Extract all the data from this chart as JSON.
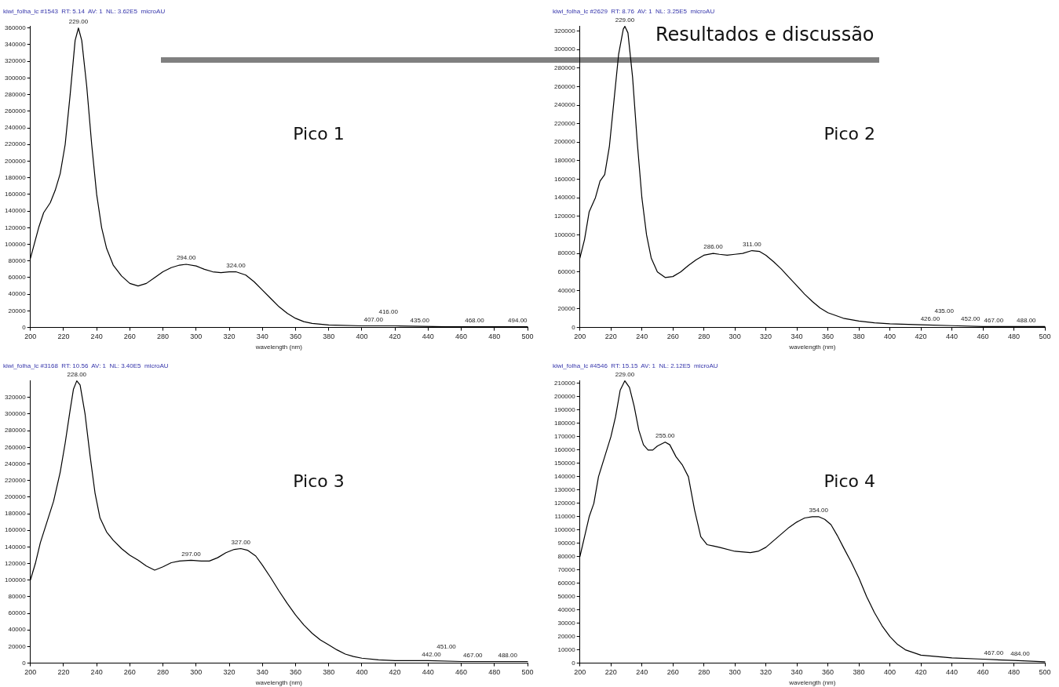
{
  "chart_data": [
    {
      "type": "line",
      "title": "kiwi_folha_lc #1543  RT: 5.14  AV: 1  NL: 3.62E5  microAU",
      "xlabel": "wavelength (nm)",
      "grid": false,
      "legend": false,
      "marker": "none",
      "xlim": [
        200,
        500
      ],
      "xticks": [
        200,
        220,
        240,
        260,
        280,
        300,
        320,
        340,
        360,
        380,
        400,
        420,
        440,
        460,
        480,
        500
      ],
      "ylim": [
        0,
        362000
      ],
      "yticks": [
        0,
        20000,
        40000,
        60000,
        80000,
        100000,
        120000,
        140000,
        160000,
        180000,
        200000,
        220000,
        240000,
        260000,
        280000,
        300000,
        320000,
        340000,
        360000
      ],
      "series": [
        {
          "color": "#000000",
          "x": [
            200,
            205,
            208,
            212,
            215,
            218,
            221,
            224,
            227,
            229,
            231,
            234,
            237,
            240,
            243,
            246,
            250,
            255,
            260,
            265,
            270,
            275,
            280,
            285,
            290,
            294,
            300,
            305,
            310,
            315,
            320,
            324,
            330,
            335,
            340,
            345,
            350,
            355,
            360,
            365,
            370,
            380,
            400,
            420,
            450,
            500
          ],
          "values": [
            83000,
            120000,
            138000,
            150000,
            165000,
            185000,
            220000,
            280000,
            345000,
            360000,
            345000,
            290000,
            220000,
            160000,
            120000,
            95000,
            75000,
            62000,
            53000,
            50000,
            53000,
            60000,
            67000,
            72000,
            75000,
            76000,
            74000,
            70000,
            67000,
            66000,
            67000,
            67000,
            63000,
            55000,
            45000,
            35000,
            25000,
            17000,
            11000,
            7000,
            5000,
            3000,
            2000,
            2000,
            1000,
            1000
          ]
        }
      ],
      "annotations": [
        "Pico 1",
        {
          "text": "229.00",
          "x": 229,
          "y": 360000
        },
        {
          "text": "294.00",
          "x": 294,
          "y": 76000
        },
        {
          "text": "324.00",
          "x": 324,
          "y": 67000
        },
        {
          "text": "407.00",
          "x": 407,
          "y": 2000
        },
        {
          "text": "416.00",
          "x": 416,
          "y": 2000
        },
        {
          "text": "435.00",
          "x": 435,
          "y": 1000
        },
        {
          "text": "468.00",
          "x": 468,
          "y": 1000
        },
        {
          "text": "494.00",
          "x": 494,
          "y": 1000
        }
      ]
    },
    {
      "type": "line",
      "title": "kiwi_folha_lc #2629  RT: 8.76  AV: 1  NL: 3.25E5  microAU",
      "xlabel": "wavelength (nm)",
      "grid": false,
      "legend": false,
      "marker": "none",
      "xlim": [
        200,
        500
      ],
      "xticks": [
        200,
        220,
        240,
        260,
        280,
        300,
        320,
        340,
        360,
        380,
        400,
        420,
        440,
        460,
        480,
        500
      ],
      "ylim": [
        0,
        325000
      ],
      "yticks": [
        0,
        20000,
        40000,
        60000,
        80000,
        100000,
        120000,
        140000,
        160000,
        180000,
        200000,
        220000,
        240000,
        260000,
        280000,
        300000,
        320000
      ],
      "series": [
        {
          "color": "#000000",
          "x": [
            200,
            203,
            206,
            210,
            213,
            216,
            219,
            222,
            225,
            228,
            229,
            231,
            234,
            237,
            240,
            243,
            246,
            250,
            255,
            260,
            265,
            270,
            275,
            280,
            286,
            290,
            295,
            300,
            305,
            311,
            316,
            320,
            325,
            330,
            335,
            340,
            345,
            350,
            355,
            360,
            370,
            380,
            390,
            400,
            420,
            440,
            460,
            480,
            500
          ],
          "values": [
            75000,
            95000,
            125000,
            140000,
            158000,
            165000,
            195000,
            245000,
            295000,
            322000,
            325000,
            318000,
            270000,
            200000,
            140000,
            100000,
            75000,
            60000,
            54000,
            55000,
            60000,
            67000,
            73000,
            78000,
            80000,
            79000,
            78000,
            79000,
            80000,
            83000,
            82000,
            78000,
            71000,
            63000,
            54000,
            45000,
            36000,
            28000,
            21000,
            16000,
            10000,
            7000,
            5000,
            4000,
            3000,
            2000,
            1000,
            1000,
            1000
          ]
        }
      ],
      "annotations": [
        "Pico 2",
        {
          "text": "229.00",
          "x": 229,
          "y": 325000
        },
        {
          "text": "286.00",
          "x": 286,
          "y": 80000
        },
        {
          "text": "311.00",
          "x": 311,
          "y": 83000
        },
        {
          "text": "426.00",
          "x": 426,
          "y": 2000
        },
        {
          "text": "435.00",
          "x": 435,
          "y": 2000
        },
        {
          "text": "452.00",
          "x": 452,
          "y": 2000
        },
        {
          "text": "467.00",
          "x": 467,
          "y": 1000
        },
        {
          "text": "488.00",
          "x": 488,
          "y": 1000
        }
      ]
    },
    {
      "type": "line",
      "title": "kiwi_folha_lc #3168  RT: 10.56  AV: 1  NL: 3.40E5  microAU",
      "xlabel": "wavelength (nm)",
      "grid": false,
      "legend": false,
      "marker": "none",
      "xlim": [
        200,
        500
      ],
      "xticks": [
        200,
        220,
        240,
        260,
        280,
        300,
        320,
        340,
        360,
        380,
        400,
        420,
        440,
        460,
        480,
        500
      ],
      "ylim": [
        0,
        340000
      ],
      "yticks": [
        0,
        20000,
        40000,
        60000,
        80000,
        100000,
        120000,
        140000,
        160000,
        180000,
        200000,
        220000,
        240000,
        260000,
        280000,
        300000,
        320000
      ],
      "series": [
        {
          "color": "#000000",
          "x": [
            200,
            203,
            206,
            210,
            214,
            218,
            221,
            224,
            226,
            228,
            230,
            233,
            236,
            239,
            242,
            246,
            250,
            255,
            260,
            265,
            270,
            275,
            280,
            285,
            290,
            297,
            303,
            308,
            313,
            318,
            323,
            327,
            331,
            336,
            340,
            345,
            350,
            355,
            360,
            365,
            370,
            375,
            380,
            385,
            390,
            395,
            400,
            410,
            420,
            440,
            460,
            480,
            500
          ],
          "values": [
            100000,
            120000,
            145000,
            170000,
            195000,
            230000,
            265000,
            305000,
            330000,
            340000,
            335000,
            300000,
            250000,
            205000,
            175000,
            158000,
            148000,
            138000,
            130000,
            124000,
            117000,
            112000,
            116000,
            121000,
            123000,
            124000,
            123000,
            123000,
            127000,
            133000,
            137000,
            138000,
            136000,
            129000,
            118000,
            103000,
            87000,
            72000,
            58000,
            46000,
            36000,
            28000,
            22000,
            16000,
            11000,
            8000,
            6000,
            4000,
            3000,
            3000,
            2000,
            2000,
            2000
          ]
        }
      ],
      "annotations": [
        "Pico 3",
        {
          "text": "228.00",
          "x": 228,
          "y": 340000
        },
        {
          "text": "297.00",
          "x": 297,
          "y": 124000
        },
        {
          "text": "327.00",
          "x": 327,
          "y": 138000
        },
        {
          "text": "442.00",
          "x": 442,
          "y": 3000
        },
        {
          "text": "451.00",
          "x": 451,
          "y": 2000
        },
        {
          "text": "467.00",
          "x": 467,
          "y": 2000
        },
        {
          "text": "488.00",
          "x": 488,
          "y": 2000
        }
      ]
    },
    {
      "type": "line",
      "title": "kiwi_folha_lc #4546  RT: 15.15  AV: 1  NL: 2.12E5  microAU",
      "xlabel": "wavelength (nm)",
      "grid": false,
      "legend": false,
      "marker": "none",
      "xlim": [
        200,
        500
      ],
      "xticks": [
        200,
        220,
        240,
        260,
        280,
        300,
        320,
        340,
        360,
        380,
        400,
        420,
        440,
        460,
        480,
        500
      ],
      "ylim": [
        0,
        212000
      ],
      "yticks": [
        0,
        10000,
        20000,
        30000,
        40000,
        50000,
        60000,
        70000,
        80000,
        90000,
        100000,
        110000,
        120000,
        130000,
        140000,
        150000,
        160000,
        170000,
        180000,
        190000,
        200000,
        210000
      ],
      "series": [
        {
          "color": "#000000",
          "x": [
            200,
            203,
            206,
            209,
            212,
            216,
            220,
            223,
            226,
            229,
            232,
            235,
            238,
            241,
            244,
            247,
            250,
            255,
            258,
            262,
            266,
            270,
            274,
            278,
            282,
            286,
            290,
            300,
            310,
            315,
            320,
            325,
            330,
            335,
            340,
            345,
            350,
            354,
            358,
            362,
            366,
            370,
            375,
            380,
            385,
            390,
            395,
            400,
            405,
            410,
            420,
            430,
            440,
            460,
            480,
            500
          ],
          "values": [
            80000,
            95000,
            110000,
            120000,
            140000,
            155000,
            170000,
            185000,
            205000,
            212000,
            207000,
            193000,
            175000,
            164000,
            160000,
            160000,
            163000,
            166000,
            164000,
            155000,
            149000,
            140000,
            115000,
            95000,
            89000,
            88000,
            87000,
            84000,
            83000,
            84000,
            87000,
            92000,
            97000,
            102000,
            106000,
            109000,
            110000,
            110000,
            108000,
            104000,
            96000,
            87000,
            76000,
            64000,
            50000,
            38000,
            28000,
            20000,
            14000,
            10000,
            6000,
            5000,
            4000,
            3000,
            2000,
            1000
          ]
        }
      ],
      "annotations": [
        "Pico 4",
        {
          "text": "229.00",
          "x": 229,
          "y": 212000
        },
        {
          "text": "255.00",
          "x": 255,
          "y": 166000
        },
        {
          "text": "354.00",
          "x": 354,
          "y": 110000
        },
        {
          "text": "467.00",
          "x": 467,
          "y": 3000
        },
        {
          "text": "484.00",
          "x": 484,
          "y": 2000
        }
      ]
    },
    {
      "type": "other",
      "title": "Resultados e discussão"
    }
  ]
}
